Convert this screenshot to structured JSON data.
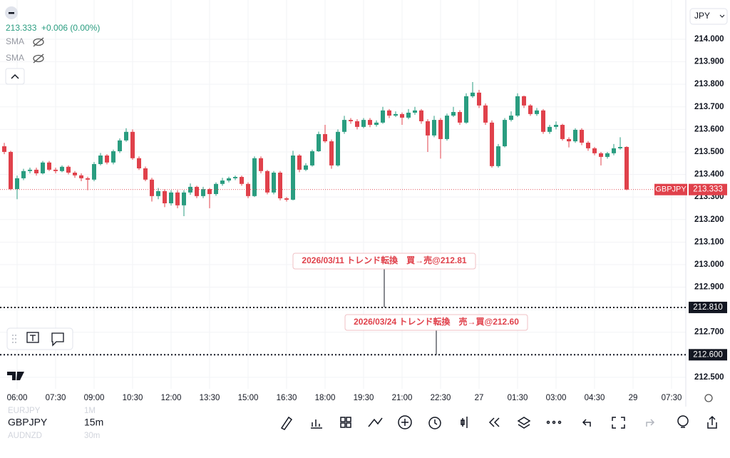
{
  "header": {
    "price": "213.333",
    "change": "+0.006 (0.00%)",
    "indicators": [
      "SMA",
      "SMA"
    ],
    "currency": "JPY"
  },
  "chart_data": {
    "type": "candlestick",
    "symbol": "GBPJPY",
    "up_color": "#2a9d80",
    "down_color": "#e0414b",
    "open": [
      213.525,
      213.5,
      213.335,
      213.383,
      213.415,
      213.421,
      213.405,
      213.453,
      213.421,
      213.415,
      213.434,
      213.408,
      213.396,
      213.383,
      213.377,
      213.446,
      213.484,
      213.453,
      213.503,
      213.551,
      213.589,
      213.472,
      213.427,
      213.377,
      213.304,
      213.326,
      213.272,
      213.32,
      213.263,
      213.32,
      213.345,
      213.304,
      213.335,
      213.313,
      213.358,
      213.373,
      213.383,
      213.389,
      213.358,
      213.304,
      213.472,
      213.415,
      213.32,
      213.408,
      213.294,
      213.288,
      213.484,
      213.421,
      213.44,
      213.503,
      213.579,
      213.547,
      213.44,
      213.589,
      213.642,
      213.636,
      213.611,
      213.642,
      213.62,
      213.63,
      213.684,
      213.661,
      213.668,
      213.652,
      213.674,
      213.684,
      213.636,
      213.573,
      213.642,
      213.557,
      213.661,
      213.677,
      213.63,
      213.747,
      213.763,
      213.706,
      213.63,
      213.437,
      213.525,
      213.642,
      213.661,
      213.747,
      213.706,
      213.668,
      213.684,
      213.589,
      213.611,
      213.62,
      213.557,
      213.547,
      213.598,
      213.541,
      213.516,
      213.494,
      213.478,
      213.494,
      213.516,
      213.522
    ],
    "high": [
      213.54,
      213.505,
      213.395,
      213.425,
      213.43,
      213.43,
      213.46,
      213.46,
      213.43,
      213.44,
      213.44,
      213.415,
      213.405,
      213.39,
      213.455,
      213.495,
      213.49,
      213.51,
      213.56,
      213.605,
      213.6,
      213.48,
      213.435,
      213.385,
      213.34,
      213.335,
      213.33,
      213.33,
      213.33,
      213.36,
      213.35,
      213.345,
      213.34,
      213.365,
      213.385,
      213.39,
      213.395,
      213.395,
      213.365,
      213.48,
      213.48,
      213.42,
      213.415,
      213.415,
      213.3,
      213.505,
      213.49,
      213.45,
      213.51,
      213.59,
      213.62,
      213.555,
      213.6,
      213.66,
      213.65,
      213.645,
      213.65,
      213.65,
      213.64,
      213.7,
      213.69,
      213.68,
      213.675,
      213.69,
      213.7,
      213.69,
      213.645,
      213.66,
      213.65,
      213.67,
      213.7,
      213.685,
      213.76,
      213.81,
      213.775,
      213.715,
      213.64,
      213.535,
      213.65,
      213.68,
      213.76,
      213.75,
      213.712,
      213.695,
      213.69,
      213.62,
      213.635,
      213.625,
      213.565,
      213.605,
      213.605,
      213.548,
      213.522,
      213.5,
      213.5,
      213.535,
      213.565,
      213.525
    ],
    "low": [
      213.49,
      213.33,
      213.29,
      213.375,
      213.405,
      213.395,
      213.4,
      213.415,
      213.405,
      213.41,
      213.4,
      213.385,
      213.37,
      213.33,
      213.37,
      213.44,
      213.445,
      213.445,
      213.495,
      213.545,
      213.465,
      213.42,
      213.37,
      213.28,
      213.29,
      213.255,
      213.262,
      213.25,
      213.215,
      213.31,
      213.295,
      213.295,
      213.25,
      213.305,
      213.35,
      213.365,
      213.375,
      213.35,
      213.295,
      213.3,
      213.405,
      213.312,
      213.312,
      213.285,
      213.28,
      213.285,
      213.41,
      213.415,
      213.435,
      213.5,
      213.54,
      213.425,
      213.435,
      213.58,
      213.625,
      213.6,
      213.605,
      213.61,
      213.612,
      213.625,
      213.65,
      213.655,
      213.62,
      213.645,
      213.665,
      213.625,
      213.5,
      213.565,
      213.47,
      213.55,
      213.655,
      213.62,
      213.625,
      213.74,
      213.695,
      213.62,
      213.43,
      213.43,
      213.52,
      213.635,
      213.655,
      213.695,
      213.66,
      213.66,
      213.58,
      213.58,
      213.6,
      213.55,
      213.52,
      213.54,
      213.53,
      213.505,
      213.485,
      213.44,
      213.47,
      213.485,
      213.51,
      213.33
    ],
    "close": [
      213.5,
      213.335,
      213.383,
      213.415,
      213.421,
      213.405,
      213.453,
      213.421,
      213.415,
      213.434,
      213.408,
      213.396,
      213.383,
      213.377,
      213.446,
      213.484,
      213.453,
      213.503,
      213.551,
      213.589,
      213.472,
      213.427,
      213.377,
      213.304,
      213.326,
      213.272,
      213.32,
      213.263,
      213.32,
      213.345,
      213.304,
      213.335,
      213.313,
      213.358,
      213.373,
      213.383,
      213.389,
      213.358,
      213.304,
      213.472,
      213.415,
      213.32,
      213.408,
      213.294,
      213.288,
      213.484,
      213.421,
      213.44,
      213.503,
      213.579,
      213.547,
      213.44,
      213.589,
      213.642,
      213.636,
      213.611,
      213.642,
      213.62,
      213.63,
      213.684,
      213.661,
      213.668,
      213.652,
      213.674,
      213.684,
      213.636,
      213.573,
      213.642,
      213.557,
      213.661,
      213.677,
      213.63,
      213.747,
      213.763,
      213.706,
      213.63,
      213.437,
      213.525,
      213.642,
      213.661,
      213.747,
      213.706,
      213.668,
      213.684,
      213.589,
      213.611,
      213.62,
      213.557,
      213.547,
      213.598,
      213.541,
      213.516,
      213.494,
      213.478,
      213.494,
      213.516,
      213.522,
      213.333
    ],
    "last_price": {
      "value": 213.333,
      "label": "213.333"
    },
    "ylim": [
      212.449,
      214.174
    ],
    "yticks": [
      {
        "value": 212.5,
        "label": "212.500"
      },
      {
        "value": 212.6,
        "label": "212.600"
      },
      {
        "value": 212.7,
        "label": "212.700"
      },
      {
        "value": 212.8,
        "label": "212.800"
      },
      {
        "value": 212.9,
        "label": "212.900"
      },
      {
        "value": 213.0,
        "label": "213.000"
      },
      {
        "value": 213.1,
        "label": "213.100"
      },
      {
        "value": 213.2,
        "label": "213.200"
      },
      {
        "value": 213.3,
        "label": "213.300"
      },
      {
        "value": 213.4,
        "label": "213.400"
      },
      {
        "value": 213.5,
        "label": "213.500"
      },
      {
        "value": 213.6,
        "label": "213.600"
      },
      {
        "value": 213.7,
        "label": "213.700"
      },
      {
        "value": 213.8,
        "label": "213.800"
      },
      {
        "value": 213.9,
        "label": "213.900"
      },
      {
        "value": 214.0,
        "label": "214.000"
      }
    ],
    "xticks": [
      {
        "value": 2,
        "label": "06:00"
      },
      {
        "value": 8,
        "label": "07:30"
      },
      {
        "value": 14,
        "label": "09:00"
      },
      {
        "value": 20,
        "label": "10:30"
      },
      {
        "value": 26,
        "label": "12:00"
      },
      {
        "value": 32,
        "label": "13:30"
      },
      {
        "value": 38,
        "label": "15:00"
      },
      {
        "value": 44,
        "label": "16:30"
      },
      {
        "value": 50,
        "label": "18:00"
      },
      {
        "value": 56,
        "label": "19:30"
      },
      {
        "value": 62,
        "label": "21:00"
      },
      {
        "value": 68,
        "label": "22:30"
      },
      {
        "value": 74,
        "label": "27"
      },
      {
        "value": 80,
        "label": "01:30"
      },
      {
        "value": 86,
        "label": "03:00"
      },
      {
        "value": 92,
        "label": "04:30"
      },
      {
        "value": 98,
        "label": "29"
      },
      {
        "value": 104,
        "label": "07:30"
      }
    ],
    "hlines": [
      {
        "value": 212.81,
        "label": "212.810"
      },
      {
        "value": 212.6,
        "label": "212.600"
      }
    ],
    "annotations": [
      "2026/03/11 トレンド転換　買→売@212.81",
      "2026/03/24 トレンド転換　売→買@212.60"
    ]
  },
  "watchlist": [
    {
      "symbol": "EURJPY",
      "interval": "1M"
    },
    {
      "symbol": "GBPJPY",
      "interval": "15m"
    },
    {
      "symbol": "AUDNZD",
      "interval": "30m"
    }
  ]
}
